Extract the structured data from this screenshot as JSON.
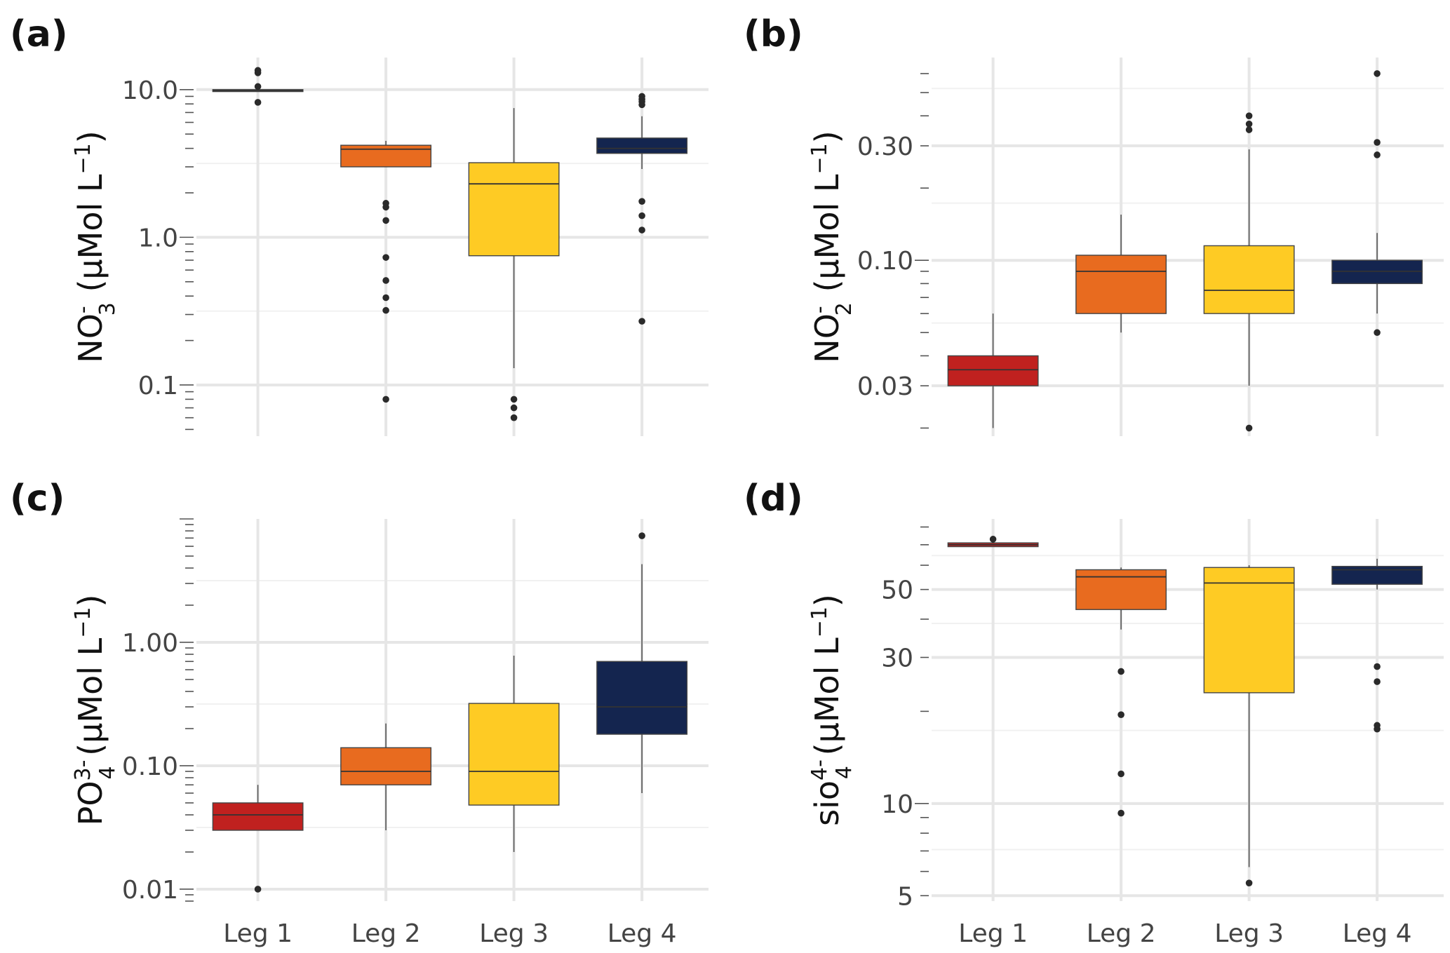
{
  "figure": {
    "colors": {
      "Leg 1": "#c0211f",
      "Leg 2": "#e86b1f",
      "Leg 3": "#fecb24",
      "Leg 4": "#14254f",
      "grid_major": "#e6e6e6",
      "grid_minor": "#f1f1f1"
    }
  },
  "chart_data": [
    {
      "panel": "(a)",
      "type": "boxplot",
      "scale": "log10",
      "ylabel": {
        "base": "NO",
        "sup": "-",
        "sub": "3",
        "units_prefix": " (µMol L",
        "units_sup": "−1",
        "units_suffix": ")"
      },
      "ylim": [
        0.045,
        16.5
      ],
      "yticks": [
        0.1,
        1.0,
        10.0
      ],
      "ytick_labels": [
        "0.1",
        "1.0",
        "10.0"
      ],
      "categories": [
        "Leg 1",
        "Leg 2",
        "Leg 3",
        "Leg 4"
      ],
      "boxes": [
        {
          "q1": 9.7,
          "median": 9.85,
          "q3": 10.0,
          "whisker_low": 9.7,
          "whisker_high": 10.0,
          "outliers": [
            13.5,
            13.0,
            10.5,
            8.2
          ]
        },
        {
          "q1": 3.0,
          "median": 3.95,
          "q3": 4.2,
          "whisker_low": 3.0,
          "whisker_high": 4.5,
          "outliers": [
            1.7,
            1.6,
            1.3,
            0.73,
            0.51,
            0.39,
            0.32,
            0.08
          ]
        },
        {
          "q1": 0.75,
          "median": 2.3,
          "q3": 3.2,
          "whisker_low": 0.13,
          "whisker_high": 7.5,
          "outliers": [
            0.08,
            0.07,
            0.06
          ]
        },
        {
          "q1": 3.7,
          "median": 4.0,
          "q3": 4.7,
          "whisker_low": 2.9,
          "whisker_high": 6.6,
          "outliers": [
            9.0,
            8.6,
            8.3,
            7.9,
            1.75,
            1.4,
            1.12,
            0.27
          ]
        }
      ]
    },
    {
      "panel": "(b)",
      "type": "boxplot",
      "scale": "log10",
      "ylabel": {
        "base": "NO",
        "sup": "-",
        "sub": "2",
        "units_prefix": " (µMol L",
        "units_sup": "−1",
        "units_suffix": ")"
      },
      "ylim": [
        0.0185,
        0.7
      ],
      "yticks": [
        0.03,
        0.1,
        0.3
      ],
      "ytick_labels": [
        "0.03",
        "0.10",
        "0.30"
      ],
      "categories": [
        "Leg 1",
        "Leg 2",
        "Leg 3",
        "Leg 4"
      ],
      "boxes": [
        {
          "q1": 0.03,
          "median": 0.035,
          "q3": 0.04,
          "whisker_low": 0.02,
          "whisker_high": 0.06,
          "outliers": []
        },
        {
          "q1": 0.06,
          "median": 0.09,
          "q3": 0.105,
          "whisker_low": 0.05,
          "whisker_high": 0.155,
          "outliers": []
        },
        {
          "q1": 0.06,
          "median": 0.075,
          "q3": 0.115,
          "whisker_low": 0.03,
          "whisker_high": 0.29,
          "outliers": [
            0.4,
            0.37,
            0.35,
            0.02
          ]
        },
        {
          "q1": 0.08,
          "median": 0.09,
          "q3": 0.1,
          "whisker_low": 0.06,
          "whisker_high": 0.13,
          "outliers": [
            0.6,
            0.31,
            0.275,
            0.05
          ]
        }
      ]
    },
    {
      "panel": "(c)",
      "type": "boxplot",
      "scale": "log10",
      "ylabel": {
        "base": "PO",
        "sup": "3-",
        "sub": "4",
        "units_prefix": " (µMol L",
        "units_sup": "−1",
        "units_suffix": ")"
      },
      "ylim": [
        0.008,
        10.0
      ],
      "yticks": [
        0.01,
        0.1,
        1.0
      ],
      "ytick_labels": [
        "0.01",
        "0.10",
        "1.00"
      ],
      "categories": [
        "Leg 1",
        "Leg 2",
        "Leg 3",
        "Leg 4"
      ],
      "boxes": [
        {
          "q1": 0.03,
          "median": 0.04,
          "q3": 0.05,
          "whisker_low": 0.03,
          "whisker_high": 0.07,
          "outliers": [
            0.01
          ]
        },
        {
          "q1": 0.07,
          "median": 0.09,
          "q3": 0.14,
          "whisker_low": 0.03,
          "whisker_high": 0.22,
          "outliers": []
        },
        {
          "q1": 0.048,
          "median": 0.09,
          "q3": 0.32,
          "whisker_low": 0.02,
          "whisker_high": 0.78,
          "outliers": []
        },
        {
          "q1": 0.18,
          "median": 0.3,
          "q3": 0.7,
          "whisker_low": 0.06,
          "whisker_high": 4.3,
          "outliers": [
            7.3
          ]
        }
      ]
    },
    {
      "panel": "(d)",
      "type": "boxplot",
      "scale": "log10",
      "ylabel": {
        "base": "sio",
        "sup": "4-",
        "sub": "4",
        "units_prefix": " (µMol L",
        "units_sup": "−1",
        "units_suffix": ")"
      },
      "ylim": [
        4.8,
        85.0
      ],
      "yticks": [
        5,
        10,
        30,
        50
      ],
      "ytick_labels": [
        "5",
        "10",
        "30",
        "50"
      ],
      "categories": [
        "Leg 1",
        "Leg 2",
        "Leg 3",
        "Leg 4"
      ],
      "boxes": [
        {
          "q1": 69.0,
          "median": 70.0,
          "q3": 71.0,
          "whisker_low": 69.0,
          "whisker_high": 71.0,
          "outliers": [
            73.0
          ]
        },
        {
          "q1": 43.0,
          "median": 55.0,
          "q3": 58.0,
          "whisker_low": 37.0,
          "whisker_high": 59.0,
          "outliers": [
            27.0,
            19.5,
            12.5,
            9.3
          ]
        },
        {
          "q1": 23.0,
          "median": 52.5,
          "q3": 59.0,
          "whisker_low": 6.2,
          "whisker_high": 60.0,
          "outliers": [
            5.5
          ]
        },
        {
          "q1": 52.0,
          "median": 58.0,
          "q3": 59.5,
          "whisker_low": 50.0,
          "whisker_high": 63.0,
          "outliers": [
            28.0,
            25.0,
            18.0,
            17.5
          ]
        }
      ]
    }
  ]
}
